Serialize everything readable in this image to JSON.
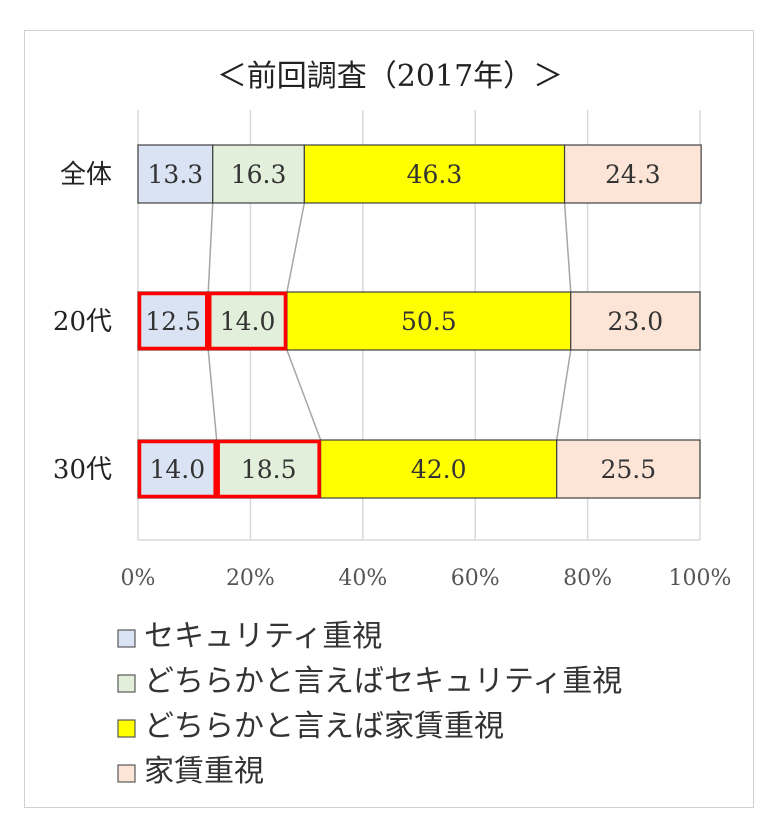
{
  "chart_data": {
    "type": "bar",
    "orientation": "horizontal",
    "stacked": "percent",
    "title": "＜前回調査（2017年）＞",
    "categories": [
      "全体",
      "20代",
      "30代"
    ],
    "series": [
      {
        "name": "セキュリティ重視",
        "values": [
          13.3,
          12.5,
          14.0
        ],
        "color": "#dae3f3"
      },
      {
        "name": "どちらかと言えばセキュリティ重視",
        "values": [
          16.3,
          14.0,
          18.5
        ],
        "color": "#e2efda"
      },
      {
        "name": "どちらかと言えば家賃重視",
        "values": [
          46.3,
          50.5,
          42.0
        ],
        "color": "#ffff00"
      },
      {
        "name": "家賃重視",
        "values": [
          24.3,
          23.0,
          25.5
        ],
        "color": "#fce4d6"
      }
    ],
    "xlim": [
      0,
      100
    ],
    "xticks": [
      "0%",
      "20%",
      "40%",
      "60%",
      "80%",
      "100%"
    ],
    "grid": true,
    "legend_position": "bottom",
    "highlighted_segments": [
      {
        "category": "20代",
        "series": [
          "セキュリティ重視",
          "どちらかと言えばセキュリティ重視"
        ],
        "color": "#ff0000"
      },
      {
        "category": "30代",
        "series": [
          "セキュリティ重視",
          "どちらかと言えばセキュリティ重視"
        ],
        "color": "#ff0000"
      }
    ]
  }
}
